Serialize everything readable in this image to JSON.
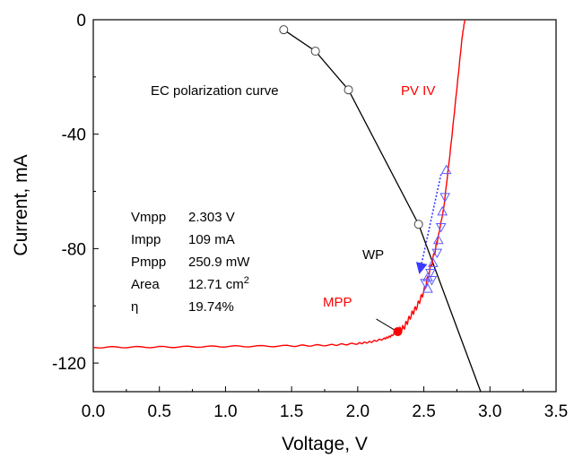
{
  "chart_data": {
    "type": "line",
    "xlabel": "Voltage, V",
    "ylabel": "Current, mA",
    "xlim": [
      0,
      3.5
    ],
    "ylim": [
      -130,
      0
    ],
    "xticks": [
      "0.0",
      "0.5",
      "1.0",
      "1.5",
      "2.0",
      "2.5",
      "3.0",
      "3.5"
    ],
    "yticks": [
      "0",
      "-40",
      "-80",
      "-120"
    ],
    "colors": {
      "pv": "#ff0000",
      "ec": "#000000",
      "wp": "#4a4aff",
      "mpp": "#ff0000"
    },
    "series": [
      {
        "name": "PV IV",
        "color": "#ff0000",
        "points": [
          [
            0.0,
            -114.5
          ],
          [
            0.5,
            -114.4
          ],
          [
            1.0,
            -114.2
          ],
          [
            1.5,
            -114.0
          ],
          [
            1.8,
            -113.7
          ],
          [
            2.0,
            -113.2
          ],
          [
            2.1,
            -112.6
          ],
          [
            2.2,
            -111.5
          ],
          [
            2.25,
            -110.6
          ],
          [
            2.303,
            -109
          ],
          [
            2.35,
            -107.5
          ],
          [
            2.4,
            -103.5
          ],
          [
            2.45,
            -100
          ],
          [
            2.5,
            -95
          ],
          [
            2.55,
            -87
          ],
          [
            2.6,
            -78
          ],
          [
            2.65,
            -66
          ],
          [
            2.7,
            -46
          ],
          [
            2.75,
            -24
          ],
          [
            2.79,
            -6
          ],
          [
            2.81,
            0
          ]
        ]
      },
      {
        "name": "EC polarization curve",
        "color": "#000000",
        "points": [
          [
            1.44,
            -3.5
          ],
          [
            1.68,
            -11
          ],
          [
            1.93,
            -24.5
          ],
          [
            2.46,
            -71.5
          ],
          [
            2.93,
            -130
          ]
        ],
        "markers": [
          [
            1.44,
            -3.5
          ],
          [
            1.68,
            -11
          ],
          [
            1.93,
            -24.5
          ],
          [
            2.46,
            -71.5
          ]
        ]
      }
    ],
    "wp_markers": [
      [
        2.67,
        -52.5
      ],
      [
        2.66,
        -62
      ],
      [
        2.64,
        -67
      ],
      [
        2.63,
        -72.5
      ],
      [
        2.61,
        -77
      ],
      [
        2.6,
        -81.5
      ],
      [
        2.57,
        -85
      ],
      [
        2.55,
        -88.5
      ],
      [
        2.53,
        -90
      ],
      [
        2.51,
        -92
      ],
      [
        2.53,
        -94
      ],
      [
        2.56,
        -91
      ]
    ],
    "wp_arrow": {
      "from": [
        2.63,
        -54
      ],
      "to": [
        2.47,
        -88
      ]
    },
    "mpp_point": [
      2.303,
      -109
    ],
    "annotations": {
      "ec_label": "EC polarization curve",
      "pv_label": "PV IV",
      "wp_label": "WP",
      "mpp_label": "MPP"
    },
    "parameters": [
      {
        "name": "Vmpp",
        "value": "2.303 V"
      },
      {
        "name": "Impp",
        "value": "109 mA"
      },
      {
        "name": "Pmpp",
        "value": "250.9 mW"
      },
      {
        "name": "Area",
        "value": "12.71 cm",
        "sup": "2"
      },
      {
        "name": "η",
        "value": "19.74%"
      }
    ]
  }
}
